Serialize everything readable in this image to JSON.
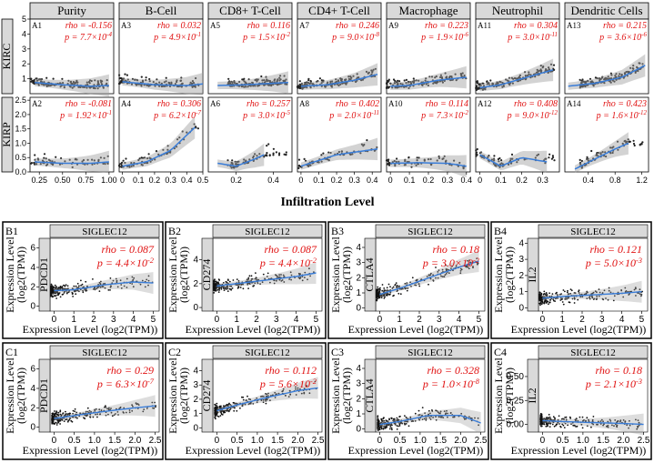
{
  "chart_data": [
    {
      "type": "scatter",
      "section": "A",
      "x_label": "Infiltration Level",
      "columns": [
        "Purity",
        "B-Cell",
        "CD8+ T-Cell",
        "CD4+ T-Cell",
        "Macrophage",
        "Neutrophil",
        "Dendritic Cells"
      ],
      "rows": [
        "KIRC",
        "KIRP"
      ],
      "row_yticks": [
        [
          "1",
          "2",
          "3",
          "4",
          "5"
        ],
        [
          "0.0",
          "0.5",
          "1.0",
          "1.5",
          "2.0",
          "2.5"
        ]
      ],
      "row_ylim": [
        [
          0,
          5
        ],
        [
          0,
          2.6
        ]
      ],
      "col_xticks": [
        [
          "0.25",
          "0.50",
          "0.75",
          "1.00"
        ],
        [
          "0",
          "0.1",
          "0.2",
          "0.3",
          "0.4",
          "0.5"
        ],
        [
          "0.2",
          "0.4"
        ],
        [
          "0",
          "0.1",
          "0.2",
          "0.3",
          "0.4"
        ],
        [
          "0",
          "0.1",
          "0.2",
          "0.3",
          "0.4"
        ],
        [
          "0",
          "0.1",
          "0.2",
          "0.3"
        ],
        [
          "0.4",
          "0.8",
          "1.2"
        ]
      ],
      "col_xtick_vals": [
        [
          0.25,
          0.5,
          0.75,
          1.0
        ],
        [
          0,
          0.1,
          0.2,
          0.3,
          0.4,
          0.5
        ],
        [
          0.2,
          0.4
        ],
        [
          0,
          0.1,
          0.2,
          0.3,
          0.4
        ],
        [
          0,
          0.1,
          0.2,
          0.3,
          0.4
        ],
        [
          0,
          0.1,
          0.2,
          0.3
        ],
        [
          0.4,
          0.8,
          1.2
        ]
      ],
      "col_xlim": [
        [
          0.15,
          1.05
        ],
        [
          -0.02,
          0.5
        ],
        [
          0.05,
          0.5
        ],
        [
          -0.02,
          0.45
        ],
        [
          -0.02,
          0.42
        ],
        [
          -0.02,
          0.38
        ],
        [
          0.05,
          1.3
        ]
      ],
      "panels": [
        {
          "id": "A1",
          "row": 0,
          "col": 0,
          "rho": "-0.156",
          "p_base": "7.7×10",
          "p_exp": "-4",
          "curve": [
            [
              0.2,
              0.75
            ],
            [
              0.5,
              0.6
            ],
            [
              0.8,
              0.5
            ],
            [
              1.0,
              0.55
            ]
          ]
        },
        {
          "id": "A3",
          "row": 0,
          "col": 1,
          "rho": "0.032",
          "p_base": "4.9×10",
          "p_exp": "-1",
          "curve": [
            [
              0,
              0.8
            ],
            [
              0.2,
              0.6
            ],
            [
              0.4,
              0.55
            ],
            [
              0.5,
              0.65
            ]
          ]
        },
        {
          "id": "A5",
          "row": 0,
          "col": 2,
          "rho": "0.116",
          "p_base": "1.5×10",
          "p_exp": "-2",
          "curve": [
            [
              0.1,
              0.55
            ],
            [
              0.25,
              0.6
            ],
            [
              0.4,
              0.7
            ],
            [
              0.48,
              0.75
            ]
          ]
        },
        {
          "id": "A7",
          "row": 0,
          "col": 3,
          "rho": "0.246",
          "p_base": "9.0×10",
          "p_exp": "-8",
          "curve": [
            [
              0,
              0.5
            ],
            [
              0.15,
              0.6
            ],
            [
              0.3,
              0.9
            ],
            [
              0.43,
              1.3
            ]
          ]
        },
        {
          "id": "A9",
          "row": 0,
          "col": 4,
          "rho": "0.223",
          "p_base": "1.9×10",
          "p_exp": "-6",
          "curve": [
            [
              0,
              0.5
            ],
            [
              0.1,
              0.55
            ],
            [
              0.25,
              0.9
            ],
            [
              0.4,
              1.1
            ]
          ]
        },
        {
          "id": "A11",
          "row": 0,
          "col": 5,
          "rho": "0.304",
          "p_base": "3.0×10",
          "p_exp": "-11",
          "curve": [
            [
              0,
              0.4
            ],
            [
              0.1,
              0.6
            ],
            [
              0.2,
              1.0
            ],
            [
              0.35,
              1.6
            ]
          ]
        },
        {
          "id": "A13",
          "row": 0,
          "col": 6,
          "rho": "0.215",
          "p_base": "3.6×10",
          "p_exp": "-6",
          "curve": [
            [
              0.1,
              0.5
            ],
            [
              0.5,
              0.7
            ],
            [
              0.9,
              1.1
            ],
            [
              1.25,
              1.9
            ]
          ]
        },
        {
          "id": "A2",
          "row": 1,
          "col": 0,
          "rho": "-0.081",
          "p_base": "1.92×10",
          "p_exp": "-1",
          "curve": [
            [
              0.2,
              0.35
            ],
            [
              0.5,
              0.3
            ],
            [
              0.8,
              0.3
            ],
            [
              1.0,
              0.35
            ]
          ]
        },
        {
          "id": "A4",
          "row": 1,
          "col": 1,
          "rho": "0.306",
          "p_base": "6.2×10",
          "p_exp": "-7",
          "curve": [
            [
              0,
              0.2
            ],
            [
              0.15,
              0.35
            ],
            [
              0.3,
              0.75
            ],
            [
              0.45,
              1.55
            ]
          ]
        },
        {
          "id": "A6",
          "row": 1,
          "col": 2,
          "rho": "0.257",
          "p_base": "3.0×10",
          "p_exp": "-5",
          "curve": [
            [
              0.1,
              0.3
            ],
            [
              0.2,
              0.2
            ],
            [
              0.3,
              0.45
            ],
            [
              0.35,
              0.6
            ]
          ]
        },
        {
          "id": "A8",
          "row": 1,
          "col": 3,
          "rho": "0.402",
          "p_base": "2.0×10",
          "p_exp": "-11",
          "curve": [
            [
              0,
              0.2
            ],
            [
              0.1,
              0.4
            ],
            [
              0.2,
              0.6
            ],
            [
              0.43,
              0.8
            ]
          ]
        },
        {
          "id": "A10",
          "row": 1,
          "col": 4,
          "rho": "0.114",
          "p_base": "7.3×10",
          "p_exp": "-2",
          "curve": [
            [
              0,
              0.3
            ],
            [
              0.15,
              0.32
            ],
            [
              0.3,
              0.3
            ],
            [
              0.4,
              0.2
            ]
          ]
        },
        {
          "id": "A12",
          "row": 1,
          "col": 5,
          "rho": "0.408",
          "p_base": "9.0×10",
          "p_exp": "-12",
          "curve": [
            [
              0,
              0.6
            ],
            [
              0.1,
              0.2
            ],
            [
              0.2,
              0.5
            ],
            [
              0.32,
              0.35
            ]
          ]
        },
        {
          "id": "A14",
          "row": 1,
          "col": 6,
          "rho": "0.423",
          "p_base": "1.6×10",
          "p_exp": "-12",
          "curve": [
            [
              0.2,
              0.1
            ],
            [
              0.5,
              0.45
            ],
            [
              0.8,
              0.8
            ],
            [
              1.0,
              1.0
            ]
          ]
        }
      ]
    },
    {
      "type": "scatter",
      "section": "B",
      "x_label": "Expression Level (log2(TPM))",
      "y_label_line1": "Expression Level",
      "y_label_line2": "(log2(TPM))",
      "gene_label": "SIGLEC12",
      "panels": [
        {
          "id": "B1",
          "gene": "PDCD1",
          "rho": "0.087",
          "p_base": "4.4×10",
          "p_exp": "-2",
          "xticks": [
            "0",
            "1",
            "2",
            "3",
            "4",
            "5"
          ],
          "xtick_vals": [
            0,
            1,
            2,
            3,
            4,
            5
          ],
          "xlim": [
            -0.2,
            5.3
          ],
          "yticks": [
            "0",
            "2",
            "4",
            "6"
          ],
          "ytick_vals": [
            0,
            2,
            4,
            6
          ],
          "ylim": [
            -0.5,
            7
          ],
          "curve": [
            [
              0,
              1.6
            ],
            [
              1,
              1.7
            ],
            [
              2.5,
              2.2
            ],
            [
              4,
              2.5
            ],
            [
              5,
              2.4
            ]
          ]
        },
        {
          "id": "B2",
          "gene": "CD274",
          "rho": "0.087",
          "p_base": "4.4×10",
          "p_exp": "-2",
          "xticks": [
            "0",
            "1",
            "2",
            "3",
            "4",
            "5"
          ],
          "xtick_vals": [
            0,
            1,
            2,
            3,
            4,
            5
          ],
          "xlim": [
            -0.2,
            5.3
          ],
          "yticks": [
            "0",
            "2",
            "4"
          ],
          "ytick_vals": [
            0,
            2,
            4
          ],
          "ylim": [
            -0.3,
            5.8
          ],
          "curve": [
            [
              0,
              1.8
            ],
            [
              1,
              2.0
            ],
            [
              2.5,
              2.3
            ],
            [
              4,
              2.6
            ],
            [
              5,
              2.9
            ]
          ]
        },
        {
          "id": "B3",
          "gene": "CTLA4",
          "rho": "0.18",
          "p_base": "3.0×10",
          "p_exp": "-2",
          "xticks": [
            "0",
            "1",
            "2",
            "3",
            "4",
            "5"
          ],
          "xtick_vals": [
            0,
            1,
            2,
            3,
            4,
            5
          ],
          "xlim": [
            -0.2,
            5.3
          ],
          "yticks": [
            "0",
            "1",
            "2",
            "3",
            "4"
          ],
          "ytick_vals": [
            0,
            1,
            2,
            3,
            4
          ],
          "ylim": [
            -0.2,
            4.6
          ],
          "curve": [
            [
              0,
              0.9
            ],
            [
              1,
              1.3
            ],
            [
              2.5,
              2.0
            ],
            [
              4,
              2.7
            ],
            [
              5,
              3.1
            ]
          ]
        },
        {
          "id": "B4",
          "gene": "IL2",
          "rho": "0.121",
          "p_base": "5.0×10",
          "p_exp": "-3",
          "xticks": [
            "0",
            "1",
            "2",
            "3",
            "4",
            "5"
          ],
          "xtick_vals": [
            0,
            1,
            2,
            3,
            4,
            5
          ],
          "xlim": [
            -0.2,
            5.3
          ],
          "yticks": [
            "0",
            "1",
            "2",
            "3",
            "4"
          ],
          "ytick_vals": [
            0,
            1,
            2,
            3,
            4
          ],
          "ylim": [
            -0.2,
            4.3
          ],
          "curve": [
            [
              0,
              0.6
            ],
            [
              1,
              0.7
            ],
            [
              2.5,
              0.8
            ],
            [
              4,
              0.9
            ],
            [
              5,
              1.0
            ]
          ]
        }
      ]
    },
    {
      "type": "scatter",
      "section": "C",
      "x_label": "Expression Level (log2(TPM))",
      "y_label_line1": "Expression Level",
      "y_label_line2": "(log2(TPM))",
      "gene_label": "SIGLEC12",
      "panels": [
        {
          "id": "C1",
          "gene": "PDCD1",
          "rho": "0.29",
          "p_base": "6.3×10",
          "p_exp": "-7",
          "xticks": [
            "0",
            "0.5",
            "1.0",
            "1.5",
            "2.0",
            "2.5"
          ],
          "xtick_vals": [
            0,
            0.5,
            1,
            1.5,
            2,
            2.5
          ],
          "xlim": [
            -0.1,
            2.6
          ],
          "yticks": [
            "0",
            "2",
            "4",
            "6"
          ],
          "ytick_vals": [
            0,
            2,
            4,
            6
          ],
          "ylim": [
            -0.5,
            7
          ],
          "curve": [
            [
              0,
              0.9
            ],
            [
              0.5,
              1.2
            ],
            [
              1.2,
              1.6
            ],
            [
              2,
              2.0
            ],
            [
              2.5,
              2.2
            ]
          ]
        },
        {
          "id": "C2",
          "gene": "CD274",
          "rho": "0.112",
          "p_base": "5.6×10",
          "p_exp": "-2",
          "xticks": [
            "0",
            "0.5",
            "1.0",
            "1.5",
            "2.0",
            "2.5"
          ],
          "xtick_vals": [
            0,
            0.5,
            1,
            1.5,
            2,
            2.5
          ],
          "xlim": [
            -0.1,
            2.6
          ],
          "yticks": [
            "0",
            "1",
            "2",
            "3",
            "4"
          ],
          "ytick_vals": [
            0,
            1,
            2,
            3,
            4
          ],
          "ylim": [
            -0.3,
            4.8
          ],
          "curve": [
            [
              0,
              1.2
            ],
            [
              0.5,
              1.6
            ],
            [
              1.2,
              2.1
            ],
            [
              2,
              2.6
            ],
            [
              2.5,
              2.8
            ]
          ]
        },
        {
          "id": "C3",
          "gene": "CTLA4",
          "rho": "0.328",
          "p_base": "1.0×10",
          "p_exp": "-8",
          "xticks": [
            "0",
            "0.5",
            "1.0",
            "1.5",
            "2.0",
            "2.5"
          ],
          "xtick_vals": [
            0,
            0.5,
            1,
            1.5,
            2,
            2.5
          ],
          "xlim": [
            -0.1,
            2.6
          ],
          "yticks": [
            "0",
            "1",
            "2",
            "3",
            "4"
          ],
          "ytick_vals": [
            0,
            1,
            2,
            3,
            4
          ],
          "ylim": [
            -0.2,
            4.6
          ],
          "curve": [
            [
              0,
              0.3
            ],
            [
              0.5,
              0.5
            ],
            [
              1.2,
              0.9
            ],
            [
              2,
              0.9
            ],
            [
              2.5,
              0.4
            ]
          ]
        },
        {
          "id": "C4",
          "gene": "IL2",
          "rho": "0.18",
          "p_base": "2.1×10",
          "p_exp": "-3",
          "xticks": [
            "0",
            "0.5",
            "1.0",
            "1.5",
            "2.0",
            "2.5"
          ],
          "xtick_vals": [
            0,
            0.5,
            1,
            1.5,
            2,
            2.5
          ],
          "xlim": [
            -0.1,
            2.6
          ],
          "yticks": [
            "0.00",
            "0.25",
            "0.50"
          ],
          "ytick_vals": [
            0,
            0.25,
            0.5
          ],
          "ylim": [
            -0.08,
            0.68
          ],
          "curve": [
            [
              0,
              0.04
            ],
            [
              0.5,
              0.03
            ],
            [
              1.2,
              0.02
            ],
            [
              2,
              0.01
            ],
            [
              2.5,
              0.0
            ]
          ]
        }
      ]
    }
  ]
}
